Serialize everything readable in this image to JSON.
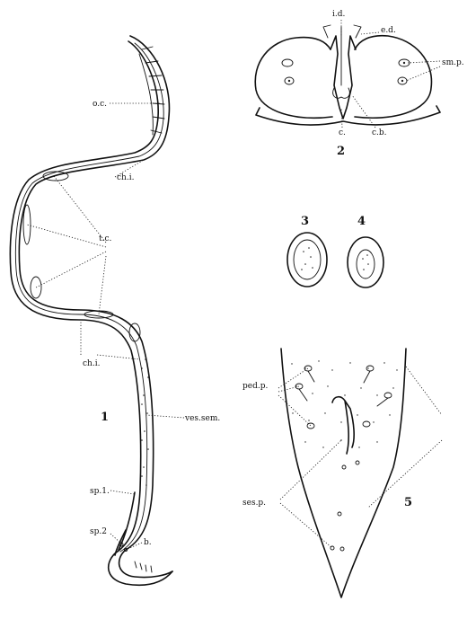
{
  "figures": [
    {
      "number": "1",
      "labels": [
        "o.c.",
        "ch.i.",
        "t.c.",
        "ch.i.",
        "ves.sem.",
        "sp.1.",
        "sp.2",
        "b."
      ]
    },
    {
      "number": "2",
      "labels": [
        "i.d.",
        "e.d.",
        "sm.p.",
        "c.",
        "c.b."
      ]
    },
    {
      "number": "3",
      "labels": []
    },
    {
      "number": "4",
      "labels": []
    },
    {
      "number": "5",
      "labels": [
        "ped.p.",
        "ses.p."
      ]
    }
  ]
}
